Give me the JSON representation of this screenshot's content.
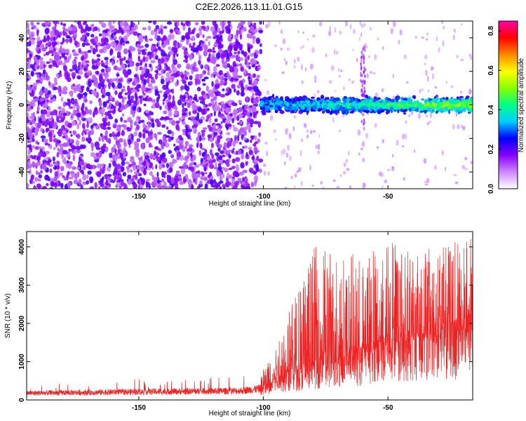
{
  "figure_title": "C2E2.2026.113.11.01.G15",
  "chart_data": [
    {
      "type": "heatmap",
      "title": "C2E2.2026.113.11.01.G15",
      "xlabel": "Height of straight line (km)",
      "ylabel": "Frequency (Hz)",
      "xlim": [
        -195,
        -16
      ],
      "ylim": [
        -50,
        50
      ],
      "x_ticks": [
        -150,
        -100,
        -50
      ],
      "y_ticks": [
        40,
        20,
        0,
        -20,
        -40
      ],
      "colorbar": {
        "label": "Normalized spectral amplitude",
        "range": [
          0.0,
          0.85
        ],
        "ticks": [
          "0.0",
          "0.2",
          "0.4",
          "0.6",
          "0.8"
        ],
        "colormap": [
          "#ffffff",
          "#cc88ff",
          "#8800ff",
          "#0000ff",
          "#00ccff",
          "#00ff88",
          "#88ff00",
          "#ffff00",
          "#ff8800",
          "#ff0000",
          "#ff00aa"
        ]
      },
      "regions": [
        {
          "name": "broadband noise",
          "x_range": [
            -195,
            -101
          ],
          "freq_range": [
            -50,
            50
          ],
          "amplitude": 0.08
        },
        {
          "name": "signal band",
          "x_range": [
            -101,
            -16
          ],
          "freq_range": [
            -5,
            5
          ],
          "amplitude_start": 0.3,
          "amplitude_end": 0.55
        }
      ],
      "features": [
        {
          "name": "vertical streak",
          "x": -60,
          "freq_range": [
            -15,
            35
          ]
        }
      ]
    },
    {
      "type": "line",
      "xlabel": "Height of straight line (km)",
      "ylabel": "SNR (10 * v/v)",
      "xlim": [
        -195,
        -16
      ],
      "ylim": [
        0,
        4400
      ],
      "x_ticks": [
        -150,
        -100,
        -50
      ],
      "y_ticks": [
        0,
        1000,
        2000,
        3000,
        4000
      ],
      "series": [
        {
          "name": "SNR",
          "color": "#ee2222",
          "envelope": [
            {
              "x": -195,
              "baseline": 150,
              "max": 500
            },
            {
              "x": -150,
              "baseline": 180,
              "max": 550
            },
            {
              "x": -110,
              "baseline": 200,
              "max": 650
            },
            {
              "x": -101,
              "baseline": 250,
              "max": 800
            },
            {
              "x": -95,
              "baseline": 600,
              "max": 1500
            },
            {
              "x": -80,
              "baseline": 900,
              "max": 4050
            },
            {
              "x": -60,
              "baseline": 1200,
              "max": 3800
            },
            {
              "x": -50,
              "baseline": 1500,
              "max": 4300
            },
            {
              "x": -30,
              "baseline": 1700,
              "max": 3900
            },
            {
              "x": -20,
              "baseline": 1800,
              "max": 4400
            },
            {
              "x": -16,
              "baseline": 1800,
              "max": 4200
            }
          ]
        }
      ]
    }
  ]
}
